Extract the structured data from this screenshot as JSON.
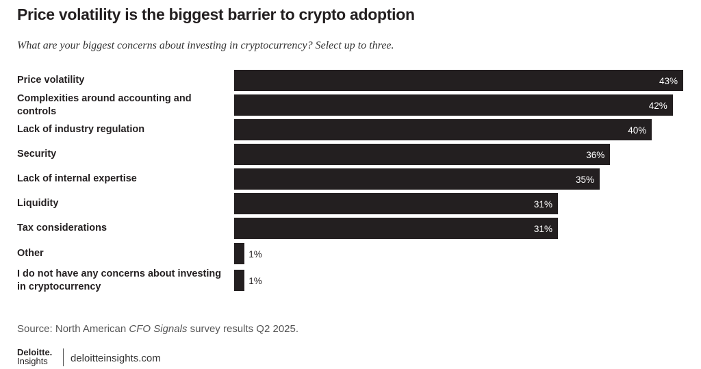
{
  "chart_data": {
    "type": "bar",
    "orientation": "horizontal",
    "title": "Price volatility is the biggest barrier to crypto adoption",
    "subtitle": "What are your biggest concerns about investing in cryptocurrency? Select up to three.",
    "categories": [
      "Price volatility",
      "Complexities around accounting and controls",
      "Lack of industry regulation",
      "Security",
      "Lack of internal expertise",
      "Liquidity",
      "Tax considerations",
      "Other",
      "I do not have any concerns about investing in cryptocurrency"
    ],
    "values": [
      43,
      42,
      40,
      36,
      35,
      31,
      31,
      1,
      1
    ],
    "value_labels": [
      "43%",
      "42%",
      "40%",
      "36%",
      "35%",
      "31%",
      "31%",
      "1%",
      "1%"
    ],
    "color": "#231f20",
    "source_parts": [
      "Source: North American ",
      "CFO Signals",
      " survey results Q2 2025."
    ],
    "brand": "Deloitte.",
    "brand_sub": "Insights",
    "website": "deloitteinsights.com"
  }
}
